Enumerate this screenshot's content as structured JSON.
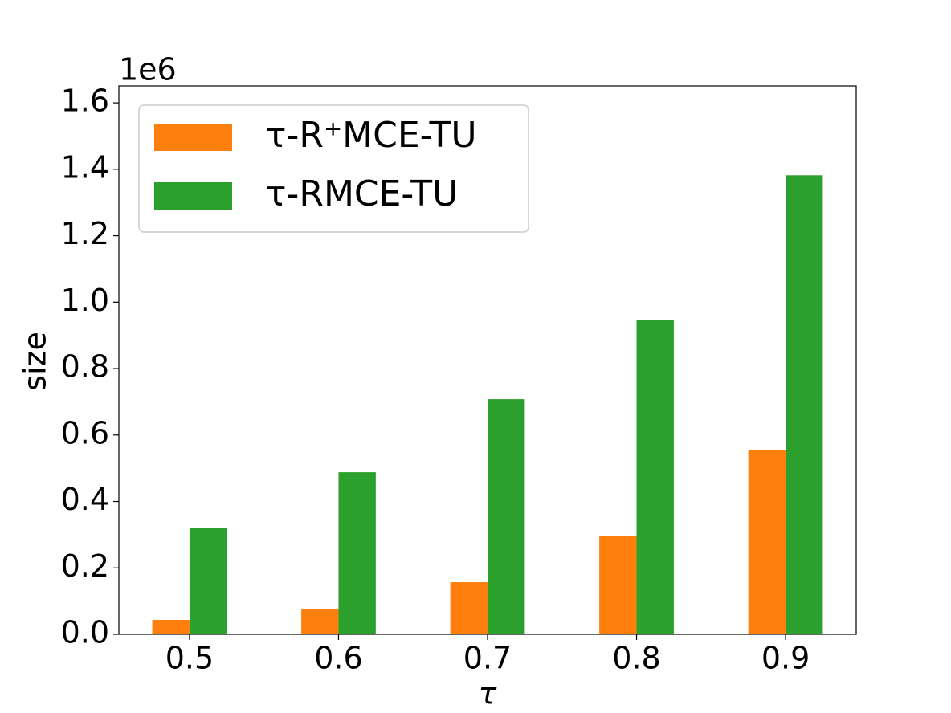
{
  "chart_data": {
    "type": "bar",
    "x": [
      0.5,
      0.6,
      0.7,
      0.8,
      0.9
    ],
    "xlabel": "τ",
    "ylabel": "size",
    "y_offset_label": "1e6",
    "series": [
      {
        "name": "τ-R⁺MCE-TU",
        "color": "#ff7f0e",
        "values": [
          43500,
          77000,
          157000,
          297000,
          556000
        ]
      },
      {
        "name": "τ-RMCE-TU",
        "color": "#2ca02c",
        "values": [
          321000,
          488000,
          708000,
          947000,
          1382000
        ]
      }
    ],
    "xlim": [
      0.4526,
      0.9474
    ],
    "xticks": [
      0.5,
      0.6,
      0.7,
      0.8,
      0.9
    ],
    "ylim": [
      0,
      1651000
    ],
    "yticks": [
      {
        "value": 0,
        "label": "0.0"
      },
      {
        "value": 200000,
        "label": "0.2"
      },
      {
        "value": 400000,
        "label": "0.4"
      },
      {
        "value": 600000,
        "label": "0.6"
      },
      {
        "value": 800000,
        "label": "0.8"
      },
      {
        "value": 1000000,
        "label": "1.0"
      },
      {
        "value": 1200000,
        "label": "1.2"
      },
      {
        "value": 1400000,
        "label": "1.4"
      },
      {
        "value": 1600000,
        "label": "1.6"
      }
    ],
    "bar_width": 0.025,
    "legend": "upper left"
  }
}
